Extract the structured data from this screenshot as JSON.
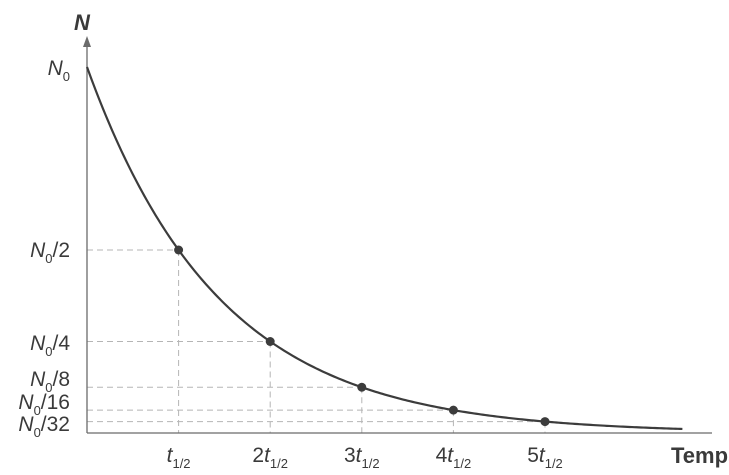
{
  "chart_data": {
    "type": "line",
    "ylabel": "N",
    "xlabel": "Temps",
    "grid": false,
    "legend": "none",
    "curve_color": "#3c3c3c",
    "curve": "exponential decay y = N0 · 2^(−x)",
    "x": [
      0,
      1,
      2,
      3,
      4,
      5
    ],
    "y": [
      1,
      0.5,
      0.25,
      0.125,
      0.0625,
      0.03125
    ],
    "marked_points": [
      {
        "x": 1,
        "y": 0.5
      },
      {
        "x": 2,
        "y": 0.25
      },
      {
        "x": 3,
        "y": 0.125
      },
      {
        "x": 4,
        "y": 0.0625
      },
      {
        "x": 5,
        "y": 0.03125
      }
    ],
    "x_range": [
      0,
      6.5
    ],
    "y_range": [
      0,
      1.12
    ],
    "y_ticks": [
      {
        "value": 1,
        "base": "N",
        "sub": "0",
        "suffix": ""
      },
      {
        "value": 0.5,
        "base": "N",
        "sub": "0",
        "suffix": "/2"
      },
      {
        "value": 0.25,
        "base": "N",
        "sub": "0",
        "suffix": "/4"
      },
      {
        "value": 0.125,
        "base": "N",
        "sub": "0",
        "suffix": "/8"
      },
      {
        "value": 0.0625,
        "base": "N",
        "sub": "0",
        "suffix": "/16"
      },
      {
        "value": 0.03125,
        "base": "N",
        "sub": "0",
        "suffix": "/32"
      }
    ],
    "x_ticks": [
      {
        "value": 1,
        "prefix": "",
        "base": "t",
        "sub": "1/2"
      },
      {
        "value": 2,
        "prefix": "2",
        "base": "t",
        "sub": "1/2"
      },
      {
        "value": 3,
        "prefix": "3",
        "base": "t",
        "sub": "1/2"
      },
      {
        "value": 4,
        "prefix": "4",
        "base": "t",
        "sub": "1/2"
      },
      {
        "value": 5,
        "prefix": "5",
        "base": "t",
        "sub": "1/2"
      }
    ]
  }
}
